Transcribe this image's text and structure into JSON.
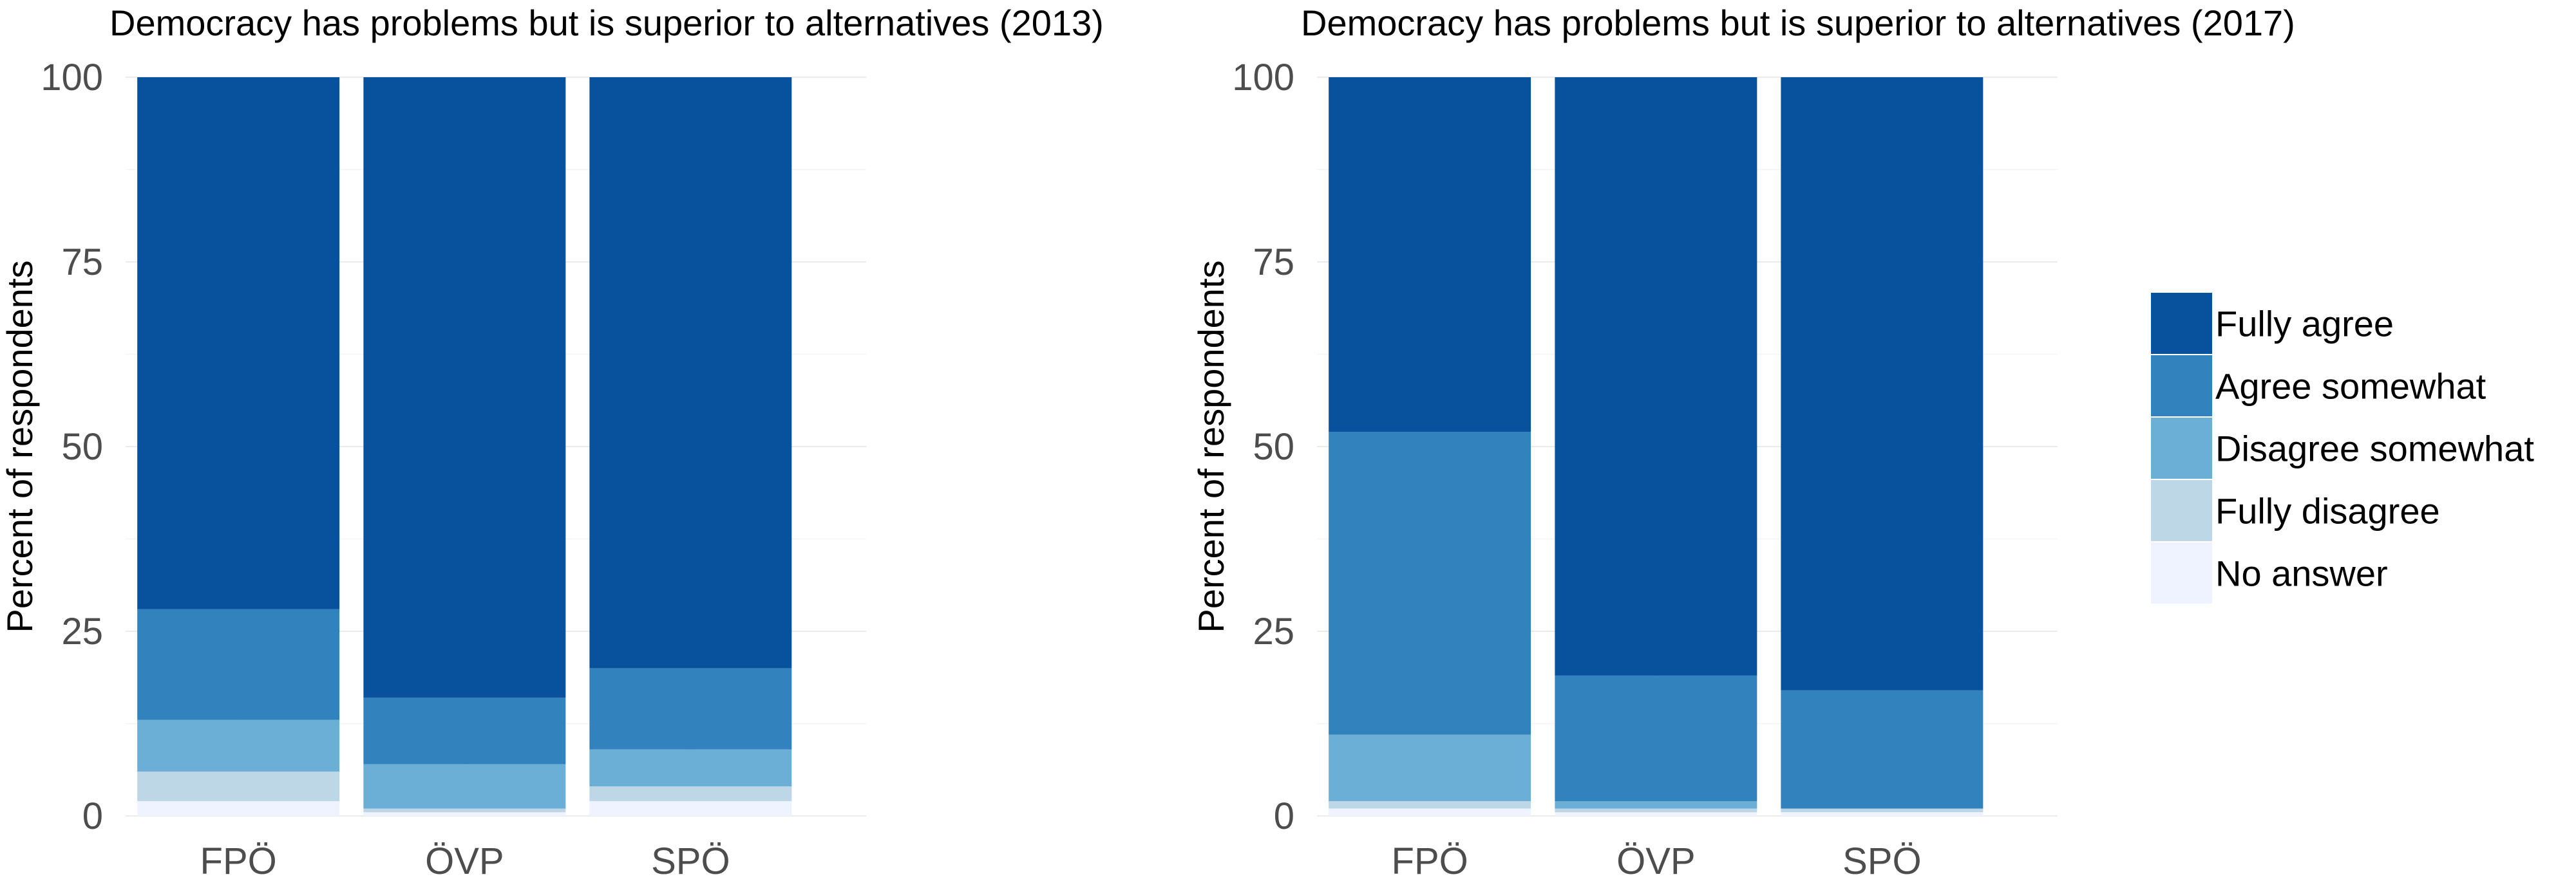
{
  "chart_data": [
    {
      "type": "bar",
      "stacked": true,
      "title": "Democracy has problems but is superior to alternatives (2013)",
      "xlabel": "",
      "ylabel": "Percent of respondents",
      "ylim": [
        0,
        100
      ],
      "yticks": [
        "0",
        "25",
        "50",
        "75",
        "100"
      ],
      "categories": [
        "FPÖ",
        "ÖVP",
        "SPÖ"
      ],
      "series": [
        {
          "name": "No answer",
          "values": [
            2,
            0.5,
            2
          ]
        },
        {
          "name": "Fully disagree",
          "values": [
            4,
            0.5,
            2
          ]
        },
        {
          "name": "Disagree somewhat",
          "values": [
            7,
            6,
            5
          ]
        },
        {
          "name": "Agree somewhat",
          "values": [
            15,
            9,
            11
          ]
        },
        {
          "name": "Fully agree",
          "values": [
            72,
            84,
            80
          ]
        }
      ]
    },
    {
      "type": "bar",
      "stacked": true,
      "title": "Democracy has problems but is superior to alternatives (2017)",
      "xlabel": "",
      "ylabel": "Percent of respondents",
      "ylim": [
        0,
        100
      ],
      "yticks": [
        "0",
        "25",
        "50",
        "75",
        "100"
      ],
      "categories": [
        "FPÖ",
        "ÖVP",
        "SPÖ"
      ],
      "series": [
        {
          "name": "No answer",
          "values": [
            1,
            0.5,
            0.5
          ]
        },
        {
          "name": "Fully disagree",
          "values": [
            1,
            0.5,
            0.5
          ]
        },
        {
          "name": "Disagree somewhat",
          "values": [
            9,
            1,
            0
          ]
        },
        {
          "name": "Agree somewhat",
          "values": [
            41,
            17,
            16
          ]
        },
        {
          "name": "Fully agree",
          "values": [
            48,
            81,
            83
          ]
        }
      ]
    }
  ],
  "legend": {
    "position": "right",
    "items": [
      {
        "label": "Fully agree",
        "color": "#08519c"
      },
      {
        "label": "Agree somewhat",
        "color": "#3182bd"
      },
      {
        "label": "Disagree somewhat",
        "color": "#6baed6"
      },
      {
        "label": "Fully disagree",
        "color": "#bdd7e7"
      },
      {
        "label": "No answer",
        "color": "#eff3ff"
      }
    ]
  }
}
